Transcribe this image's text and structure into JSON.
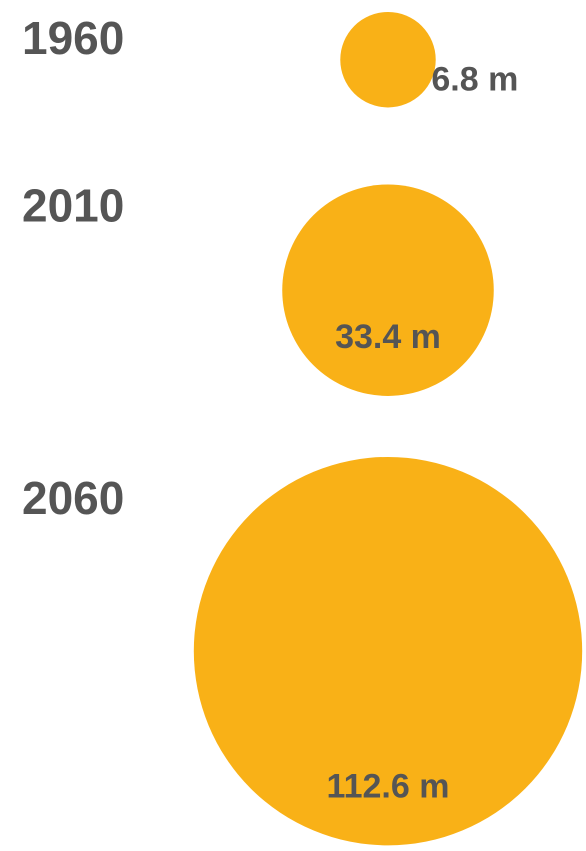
{
  "chart_data": {
    "type": "bubble",
    "categories": [
      "1960",
      "2010",
      "2060"
    ],
    "values": [
      6.8,
      33.4,
      112.6
    ],
    "value_labels": [
      "6.8 m",
      "33.4 m",
      "112.6 m"
    ],
    "color": "#f9b117"
  }
}
